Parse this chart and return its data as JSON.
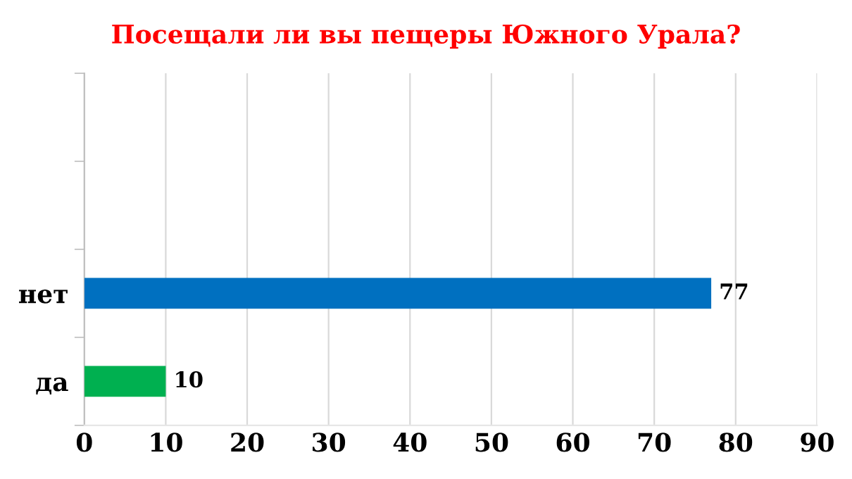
{
  "chart_data": {
    "type": "bar",
    "orientation": "horizontal",
    "title": "Посещали ли вы пещеры Южного Урала?",
    "categories": [
      null,
      null,
      "нет",
      "да"
    ],
    "values": [
      null,
      null,
      77,
      10
    ],
    "colors": [
      "#0070c0",
      "#0070c0",
      "#0070c0",
      "#00b050"
    ],
    "value_labels": [
      null,
      null,
      "77",
      "10"
    ],
    "xlim": [
      0,
      90
    ],
    "xticks": [
      0,
      10,
      20,
      30,
      40,
      50,
      60,
      70,
      80,
      90
    ],
    "grid": "x",
    "legend": false
  }
}
